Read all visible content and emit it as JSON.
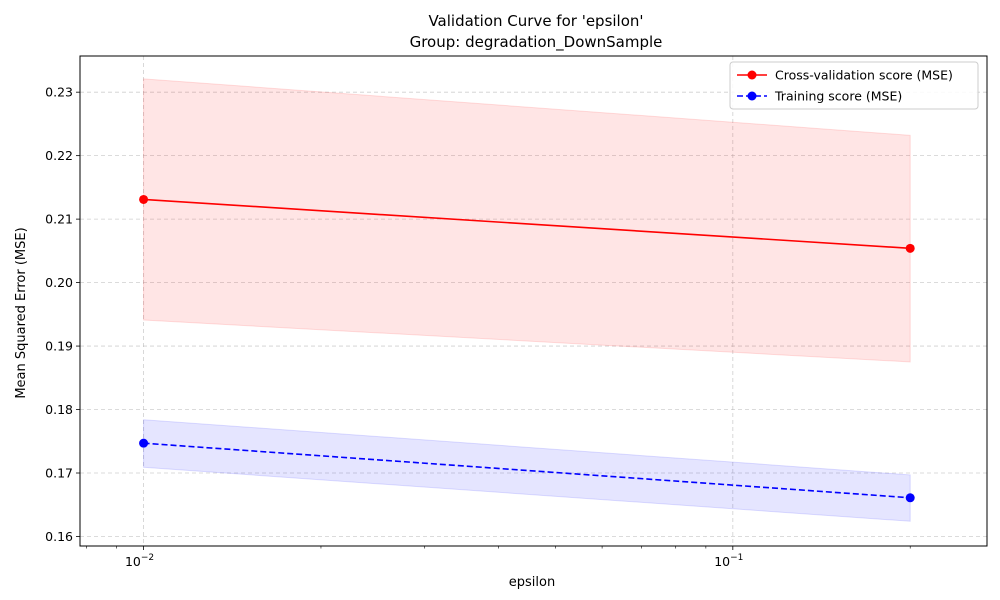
{
  "chart_data": {
    "type": "line",
    "title": "Validation Curve for 'epsilon'",
    "subtitle": "Group: degradation_DownSample",
    "xlabel": "epsilon",
    "ylabel": "Mean Squared Error (MSE)",
    "x_scale": "log",
    "xlim": [
      0.0078,
      0.27
    ],
    "ylim": [
      0.1585,
      0.2357
    ],
    "x": [
      0.01,
      0.2
    ],
    "x_ticks": [
      {
        "value": 0.01,
        "base": "10",
        "exp": "−2"
      },
      {
        "value": 0.1,
        "base": "10",
        "exp": "−1"
      }
    ],
    "y_ticks": [
      {
        "value": 0.16,
        "label": "0.16"
      },
      {
        "value": 0.17,
        "label": "0.17"
      },
      {
        "value": 0.18,
        "label": "0.18"
      },
      {
        "value": 0.19,
        "label": "0.19"
      },
      {
        "value": 0.2,
        "label": "0.20"
      },
      {
        "value": 0.21,
        "label": "0.21"
      },
      {
        "value": 0.22,
        "label": "0.22"
      },
      {
        "value": 0.23,
        "label": "0.23"
      }
    ],
    "grid": true,
    "legend_position": "top-right",
    "series": [
      {
        "name": "Cross-validation score (MSE)",
        "values": [
          0.2131,
          0.2054
        ],
        "lower": [
          0.1941,
          0.1875
        ],
        "upper": [
          0.2321,
          0.2232
        ],
        "color": "#ff0000",
        "band_color": "#ff0000",
        "dash": "solid"
      },
      {
        "name": "Training score (MSE)",
        "values": [
          0.1747,
          0.1661
        ],
        "lower": [
          0.1709,
          0.1624
        ],
        "upper": [
          0.1784,
          0.1697
        ],
        "color": "#0000ff",
        "band_color": "#0000ff",
        "dash": "dashed"
      }
    ]
  }
}
